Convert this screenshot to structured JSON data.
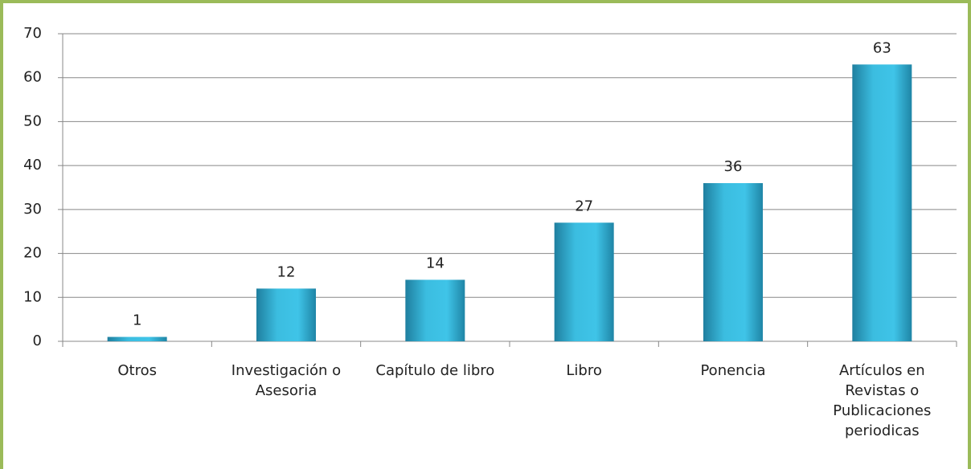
{
  "chart_data": {
    "type": "bar",
    "categories": [
      "Otros",
      "Investigación o Asesoria",
      "Capítulo de libro",
      "Libro",
      "Ponencia",
      "Artículos en Revistas o Publicaciones periodicas"
    ],
    "values": [
      1,
      12,
      14,
      27,
      36,
      63
    ],
    "color": "#3bbde0",
    "ylim": [
      0,
      70
    ],
    "yticks": [
      0,
      10,
      20,
      30,
      40,
      50,
      60,
      70
    ],
    "grid": true
  }
}
